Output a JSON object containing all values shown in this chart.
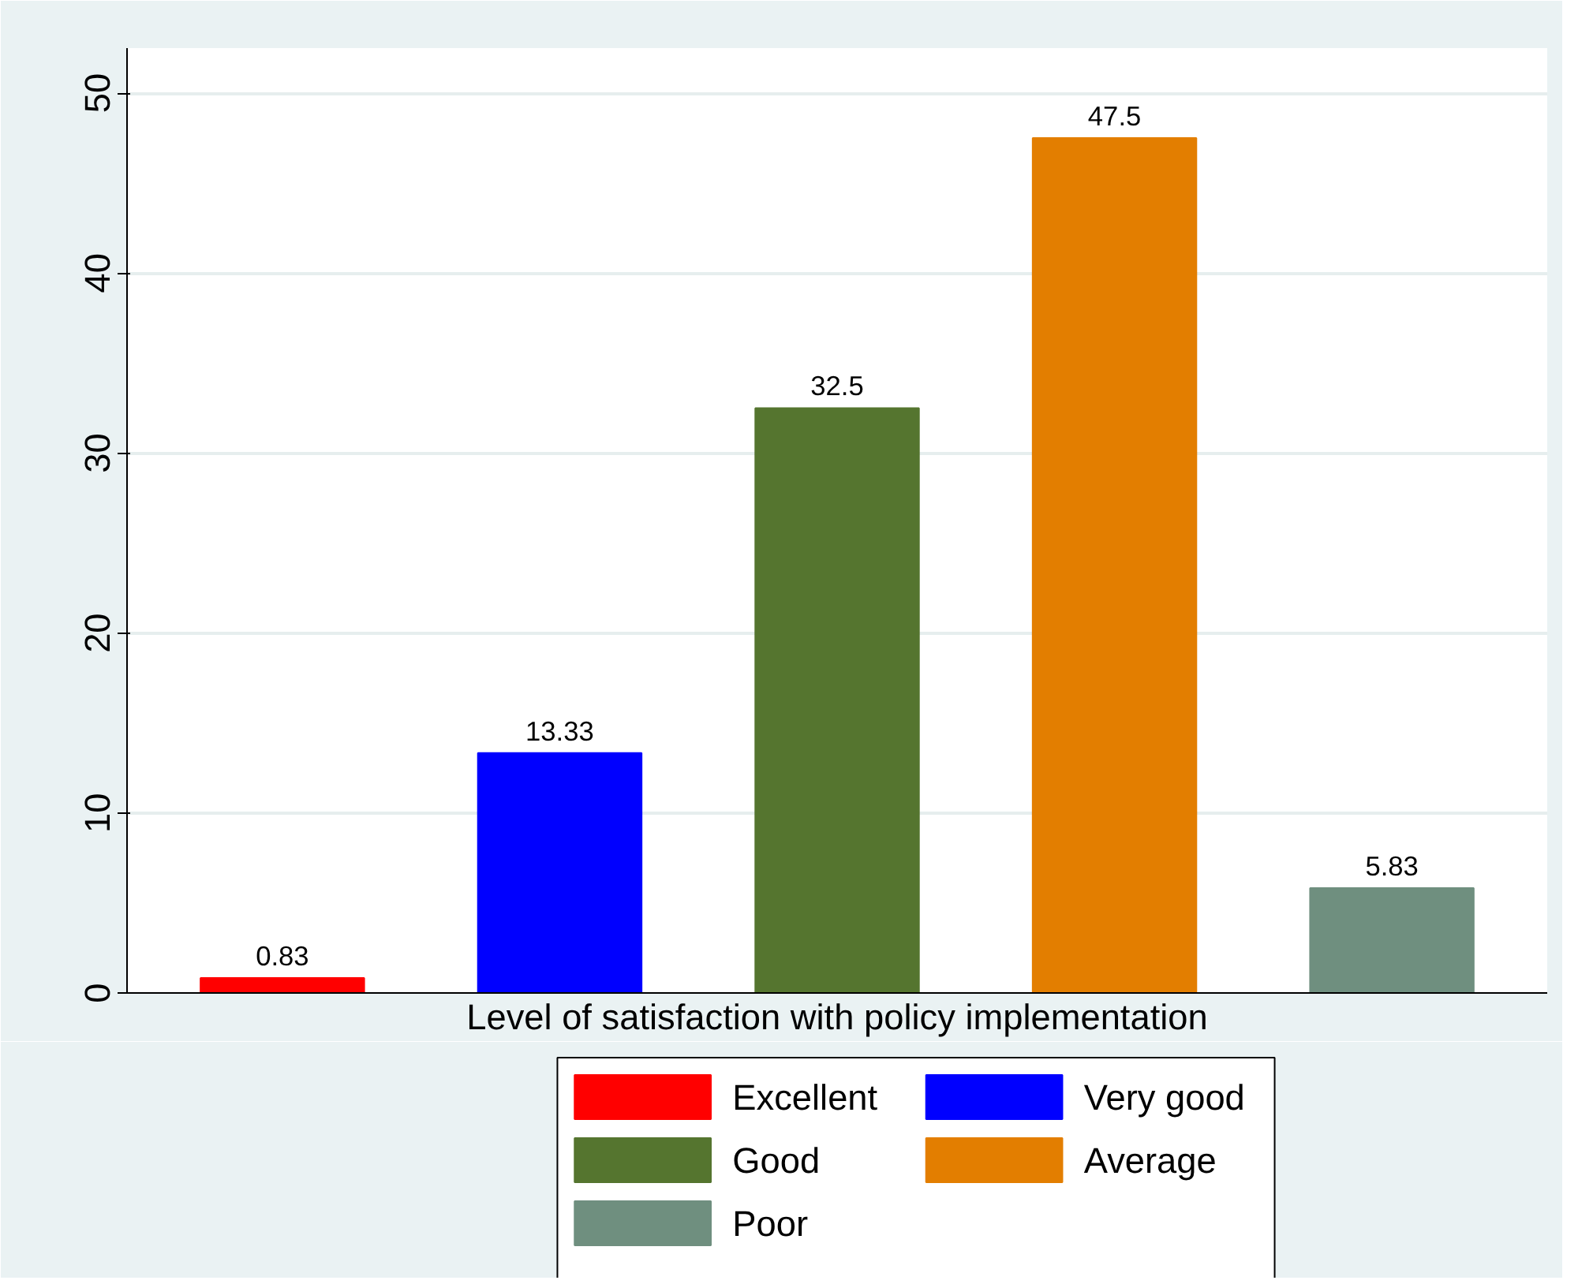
{
  "chart_data": {
    "type": "bar",
    "xlabel": "Level of satisfaction with policy implementation",
    "categories": [
      null,
      null,
      null,
      null,
      null
    ],
    "series": [
      {
        "name": "Excellent",
        "color": "#ff0000",
        "values": [
          0.83,
          null,
          null,
          null,
          null
        ]
      },
      {
        "name": "Very good",
        "color": "#0000ff",
        "values": [
          null,
          13.33,
          null,
          null,
          null
        ]
      },
      {
        "name": "Good",
        "color": "#55752f",
        "values": [
          null,
          null,
          32.5,
          null,
          null
        ]
      },
      {
        "name": "Average",
        "color": "#e37e00",
        "values": [
          null,
          null,
          null,
          47.5,
          null
        ]
      },
      {
        "name": "Poor",
        "color": "#6f8f7f",
        "values": [
          null,
          null,
          null,
          null,
          5.83
        ]
      }
    ],
    "ylim": [
      0,
      52.5
    ],
    "yticks": [
      0,
      10,
      20,
      30,
      40,
      50
    ],
    "grid": "y",
    "legend": "bottom",
    "data_labels": true
  }
}
